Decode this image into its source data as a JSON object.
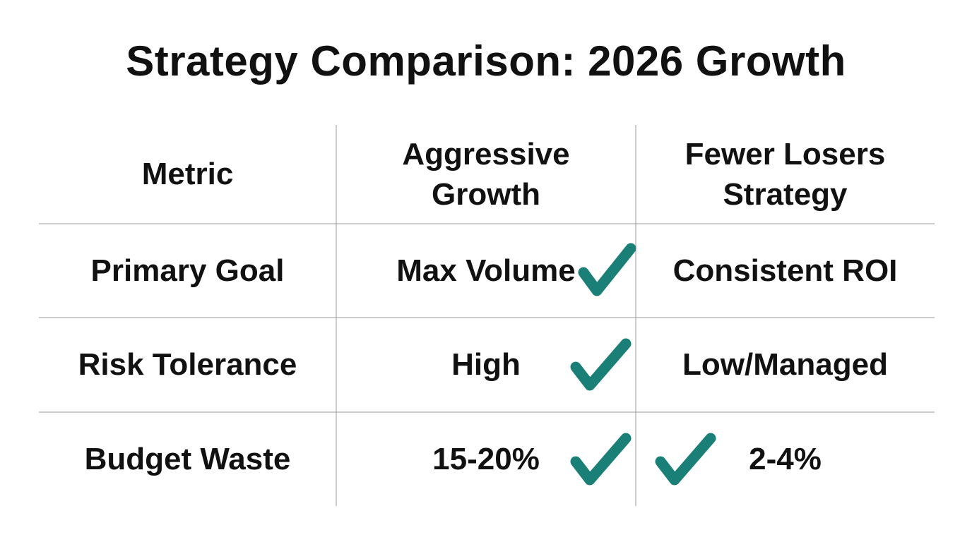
{
  "title": "Strategy Comparison: 2026 Growth",
  "table": {
    "header": [
      "Metric",
      "Aggressive Growth",
      "Fewer Losers Strategy"
    ],
    "rows": [
      [
        "Primary Goal",
        "Max Volume",
        "Consistent ROI"
      ],
      [
        "Risk Tolerance",
        "High",
        "Low/Managed"
      ],
      [
        "Budget Waste",
        "15-20%",
        "2-4%"
      ]
    ]
  }
}
